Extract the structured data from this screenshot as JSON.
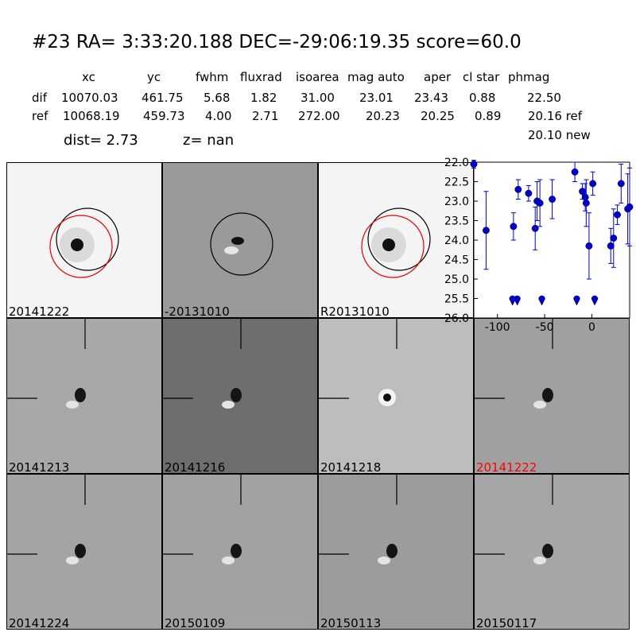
{
  "header": {
    "title": "#23   RA= 3:33:20.188 DEC=-29:06:19.35      score=60.0",
    "columns": [
      "xc",
      "yc",
      "fwhm",
      "fluxrad",
      "isoarea",
      "mag auto",
      "aper",
      "cl star",
      "phmag"
    ],
    "rows": [
      {
        "label": "dif",
        "values": [
          "10070.03",
          "461.75",
          "5.68",
          "1.82",
          "31.00",
          "23.01",
          "23.43",
          "0.88",
          "22.50"
        ]
      },
      {
        "label": "ref",
        "values": [
          "10068.19",
          "459.73",
          "4.00",
          "2.71",
          "272.00",
          "20.23",
          "20.25",
          "0.89",
          "20.16 ref"
        ]
      }
    ],
    "phmag_new": "20.10 new",
    "dist": "dist=  2.73",
    "z": "z=   nan"
  },
  "panels": [
    {
      "label": "20141222",
      "bg": "#f4f4f4",
      "label_color": "#000000"
    },
    {
      "label": "-20131010",
      "bg": "#9a9a9a",
      "label_color": "#000000"
    },
    {
      "label": "R20131010",
      "bg": "#f4f4f4",
      "label_color": "#000000"
    },
    {
      "label": "20141213",
      "bg": "#a8a8a8",
      "label_color": "#000000"
    },
    {
      "label": "20141216",
      "bg": "#6e6e6e",
      "label_color": "#000000"
    },
    {
      "label": "20141218",
      "bg": "#bdbdbd",
      "label_color": "#000000"
    },
    {
      "label": "20141222",
      "bg": "#a0a0a0",
      "label_color": "#ff0000"
    },
    {
      "label": "20141224",
      "bg": "#a4a4a4",
      "label_color": "#000000"
    },
    {
      "label": "20150109",
      "bg": "#a2a2a2",
      "label_color": "#000000"
    },
    {
      "label": "20150113",
      "bg": "#9c9c9c",
      "label_color": "#000000"
    },
    {
      "label": "20150117",
      "bg": "#a6a6a6",
      "label_color": "#000000"
    }
  ],
  "chart_data": {
    "type": "scatter",
    "title": "",
    "xlabel": "",
    "ylabel": "",
    "xlim": [
      -125,
      40
    ],
    "ylim": [
      26.0,
      22.0
    ],
    "y_inverted": true,
    "x_ticks": [
      "-100",
      "-50",
      "0"
    ],
    "x_tick_values": [
      -100,
      -50,
      0
    ],
    "y_ticks": [
      "22.0",
      "22.5",
      "23.0",
      "23.5",
      "24.0",
      "24.5",
      "25.0",
      "25.5",
      "26.0"
    ],
    "y_tick_values": [
      22.0,
      22.5,
      23.0,
      23.5,
      24.0,
      24.5,
      25.0,
      25.5,
      26.0
    ],
    "color": "#0000cc",
    "points": [
      {
        "x": -125,
        "y": 22.05,
        "err": 0.1
      },
      {
        "x": -112,
        "y": 23.75,
        "err": 1.0
      },
      {
        "x": -83,
        "y": 23.65,
        "err": 0.35
      },
      {
        "x": -78,
        "y": 22.7,
        "err": 0.25
      },
      {
        "x": -67,
        "y": 22.8,
        "err": 0.2
      },
      {
        "x": -60,
        "y": 23.7,
        "err": 0.55
      },
      {
        "x": -58,
        "y": 23.0,
        "err": 0.5
      },
      {
        "x": -55,
        "y": 23.05,
        "err": 0.6
      },
      {
        "x": -42,
        "y": 22.95,
        "err": 0.5
      },
      {
        "x": -18,
        "y": 22.25,
        "err": 0.25
      },
      {
        "x": -10,
        "y": 22.75,
        "err": 0.2
      },
      {
        "x": -7,
        "y": 22.9,
        "err": 0.35
      },
      {
        "x": -6,
        "y": 23.05,
        "err": 0.6
      },
      {
        "x": -3,
        "y": 24.15,
        "err": 0.85
      },
      {
        "x": 1,
        "y": 22.55,
        "err": 0.3
      },
      {
        "x": 20,
        "y": 24.15,
        "err": 0.45
      },
      {
        "x": 23,
        "y": 23.95,
        "err": 0.75
      },
      {
        "x": 27,
        "y": 23.35,
        "err": 0.25
      },
      {
        "x": 31,
        "y": 22.55,
        "err": 0.5
      },
      {
        "x": 38,
        "y": 23.2,
        "err": 0.9
      },
      {
        "x": 40,
        "y": 23.15,
        "err": 1.0
      }
    ],
    "upper_limits": [
      {
        "x": -84,
        "y": 25.55
      },
      {
        "x": -79,
        "y": 25.55
      },
      {
        "x": -53,
        "y": 25.55
      },
      {
        "x": -16,
        "y": 25.55
      },
      {
        "x": 3,
        "y": 25.55
      }
    ]
  }
}
